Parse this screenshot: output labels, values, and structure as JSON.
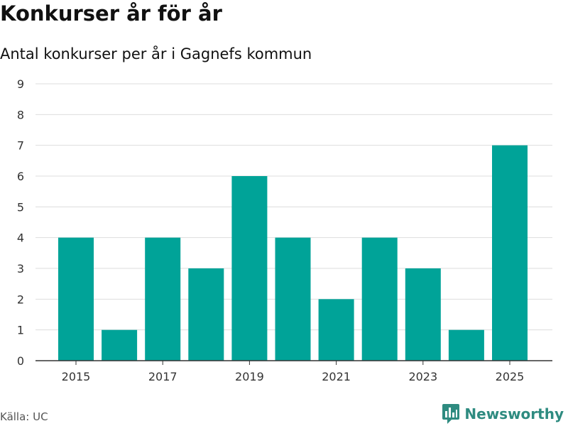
{
  "title": "Konkurser år för år",
  "subtitle": "Antal konkurser per år i Gagnefs kommun",
  "source": "Källa: UC",
  "brand": "Newsworthy",
  "colors": {
    "bar": "#00a398",
    "grid": "#dddddd",
    "axis": "#333333",
    "brand": "#2e8b80"
  },
  "chart_data": {
    "type": "bar",
    "categories": [
      "2015",
      "2016",
      "2017",
      "2018",
      "2019",
      "2020",
      "2021",
      "2022",
      "2023",
      "2024",
      "2025"
    ],
    "values": [
      4,
      1,
      4,
      3,
      6,
      4,
      2,
      4,
      3,
      1,
      7
    ],
    "x_tick_labels": [
      "2015",
      "2017",
      "2019",
      "2021",
      "2023",
      "2025"
    ],
    "y_tick_labels": [
      "0",
      "1",
      "2",
      "3",
      "4",
      "5",
      "6",
      "7",
      "8",
      "9"
    ],
    "ylim": [
      0,
      9
    ],
    "xlabel": "",
    "ylabel": "",
    "grid": true,
    "legend": "none"
  }
}
